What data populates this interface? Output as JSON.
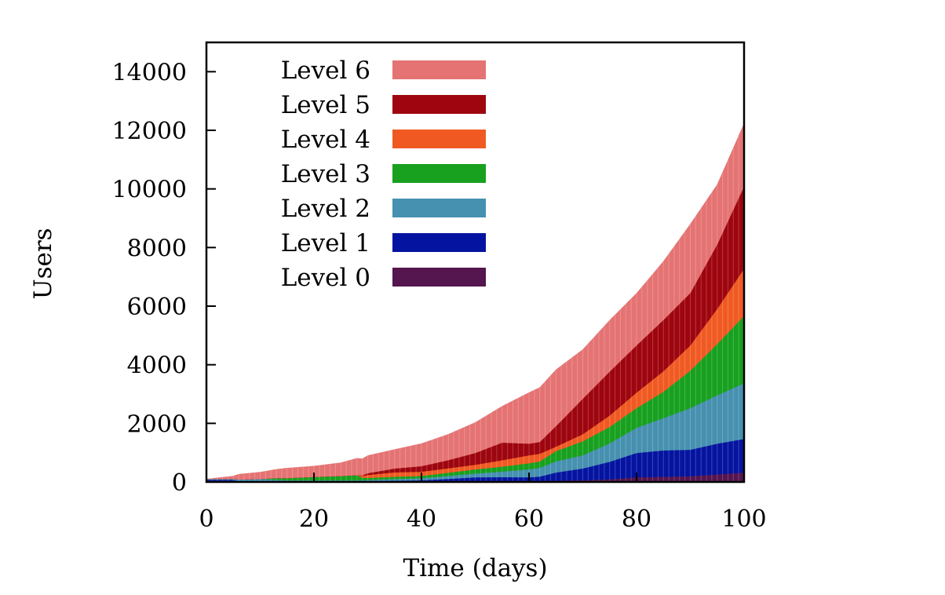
{
  "chart_data": {
    "type": "area",
    "stacked": true,
    "title": "",
    "xlabel": "Time (days)",
    "ylabel": "Users",
    "xlim": [
      0,
      100
    ],
    "ylim": [
      0,
      15000
    ],
    "xticks": [
      0,
      20,
      40,
      60,
      80,
      100
    ],
    "yticks": [
      0,
      2000,
      4000,
      6000,
      8000,
      10000,
      12000,
      14000
    ],
    "xtick_labels": [
      "0",
      "20",
      "40",
      "60",
      "80",
      "100"
    ],
    "ytick_labels": [
      "0",
      "2000",
      "4000",
      "6000",
      "8000",
      "10000",
      "12000",
      "14000"
    ],
    "grid": false,
    "legend_position": "top-left",
    "x": [
      0,
      5,
      6,
      10,
      13,
      15,
      20,
      25,
      28,
      29,
      30,
      35,
      40,
      45,
      50,
      55,
      60,
      62,
      65,
      70,
      75,
      80,
      85,
      90,
      95,
      100
    ],
    "series": [
      {
        "name": "Level 0",
        "color": "#55154f",
        "values": [
          20,
          10,
          5,
          5,
          5,
          5,
          5,
          5,
          5,
          5,
          5,
          10,
          15,
          18,
          20,
          25,
          30,
          35,
          45,
          60,
          90,
          160,
          180,
          200,
          260,
          320
        ]
      },
      {
        "name": "Level 1",
        "color": "#0514a0",
        "values": [
          60,
          60,
          20,
          20,
          20,
          20,
          20,
          20,
          20,
          20,
          25,
          35,
          45,
          90,
          140,
          140,
          130,
          150,
          280,
          400,
          600,
          830,
          900,
          900,
          1050,
          1150
        ]
      },
      {
        "name": "Level 2",
        "color": "#4690b0",
        "values": [
          20,
          40,
          60,
          80,
          50,
          30,
          30,
          30,
          30,
          30,
          40,
          55,
          70,
          100,
          130,
          190,
          270,
          300,
          380,
          450,
          630,
          860,
          1100,
          1420,
          1650,
          1900
        ]
      },
      {
        "name": "Level 3",
        "color": "#18a01f",
        "values": [
          0,
          0,
          0,
          0,
          60,
          80,
          120,
          150,
          180,
          90,
          70,
          80,
          80,
          110,
          140,
          170,
          210,
          220,
          350,
          480,
          560,
          670,
          900,
          1280,
          1750,
          2300
        ]
      },
      {
        "name": "Level 4",
        "color": "#f05a22",
        "values": [
          0,
          0,
          0,
          0,
          0,
          0,
          0,
          0,
          0,
          60,
          100,
          150,
          140,
          150,
          160,
          220,
          270,
          260,
          150,
          240,
          390,
          530,
          700,
          860,
          1200,
          1610
        ]
      },
      {
        "name": "Level 5",
        "color": "#9e050e",
        "values": [
          0,
          0,
          0,
          0,
          0,
          0,
          0,
          0,
          0,
          20,
          60,
          130,
          190,
          280,
          400,
          600,
          400,
          400,
          700,
          1210,
          1500,
          1610,
          1750,
          1790,
          2200,
          2810
        ]
      },
      {
        "name": "Level 6",
        "color": "#e57373",
        "values": [
          0,
          90,
          180,
          230,
          295,
          340,
          365,
          450,
          575,
          565,
          600,
          650,
          770,
          880,
          1040,
          1240,
          1740,
          1860,
          1925,
          1680,
          1750,
          1780,
          2000,
          2350,
          2040,
          2140
        ]
      }
    ]
  }
}
